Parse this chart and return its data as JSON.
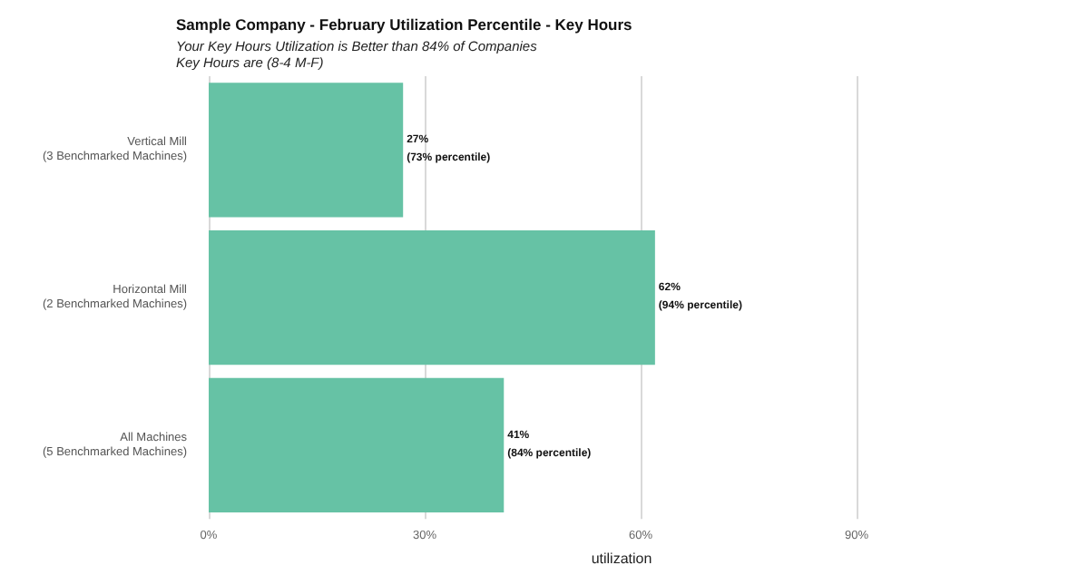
{
  "chart_data": {
    "type": "bar",
    "orientation": "horizontal",
    "title": "Sample Company - February Utilization Percentile - Key Hours",
    "subtitle": "Your Key Hours Utilization is Better than 84% of Companies\nKey Hours are (8-4 M-F)",
    "xlabel": "utilization",
    "categories": [
      "Vertical Mill\n(3 Benchmarked Machines)",
      "Horizontal Mill\n(2 Benchmarked Machines)",
      "All Machines\n(5 Benchmarked Machines)"
    ],
    "values": [
      27,
      62,
      41
    ],
    "value_labels": [
      "27%\n(73% percentile)",
      "62%\n(94% percentile)",
      "41%\n(84% percentile)"
    ],
    "color": "#66c2a5",
    "xlim": [
      0,
      90
    ],
    "xticks": [
      {
        "value": 0,
        "label": "0%"
      },
      {
        "value": 30,
        "label": "30%"
      },
      {
        "value": 60,
        "label": "60%"
      },
      {
        "value": 90,
        "label": "90%"
      }
    ],
    "grid": "x"
  }
}
